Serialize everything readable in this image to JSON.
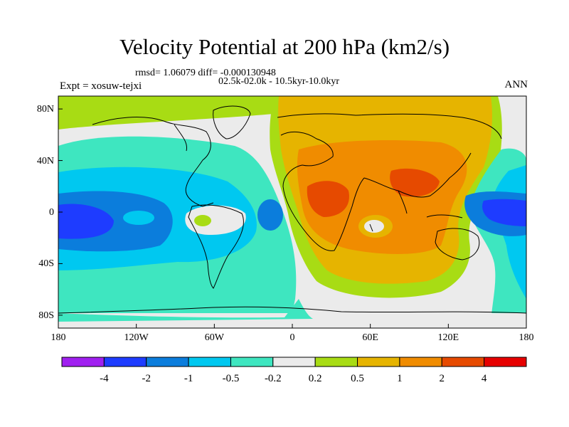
{
  "header": {
    "title": "Velocity Potential at 200 hPa (km2/s)",
    "stats": "rmsd= 1.06079 diff= -0.000130948",
    "experiment": "Expt = xosuw-tejxi",
    "period": "02.5k-02.0k - 10.5kyr-10.0kyr",
    "season": "ANN"
  },
  "map": {
    "projection": "cylindrical-equidistant",
    "lon_range": [
      -180,
      180
    ],
    "lat_range": [
      -90,
      90
    ],
    "lat_labels": [
      {
        "lat": 80,
        "text": "80N"
      },
      {
        "lat": 40,
        "text": "40N"
      },
      {
        "lat": 0,
        "text": "0"
      },
      {
        "lat": -40,
        "text": "40S"
      },
      {
        "lat": -80,
        "text": "80S"
      }
    ],
    "lon_labels": [
      {
        "lon": -180,
        "text": "180"
      },
      {
        "lon": -120,
        "text": "120W"
      },
      {
        "lon": -60,
        "text": "60W"
      },
      {
        "lon": 0,
        "text": "0"
      },
      {
        "lon": 60,
        "text": "60E"
      },
      {
        "lon": 120,
        "text": "120E"
      },
      {
        "lon": 180,
        "text": "180"
      }
    ]
  },
  "colorbar": {
    "colors": [
      "#a020f0",
      "#1e3cff",
      "#0b7ddc",
      "#00c8f0",
      "#3ee6c0",
      "#ebebeb",
      "#a8dc14",
      "#e6b400",
      "#f08c00",
      "#e64a00",
      "#e60000"
    ],
    "labels": [
      "-4",
      "-2",
      "-1",
      "-0.5",
      "-0.2",
      "0.2",
      "0.5",
      "1",
      "2",
      "4"
    ]
  }
}
